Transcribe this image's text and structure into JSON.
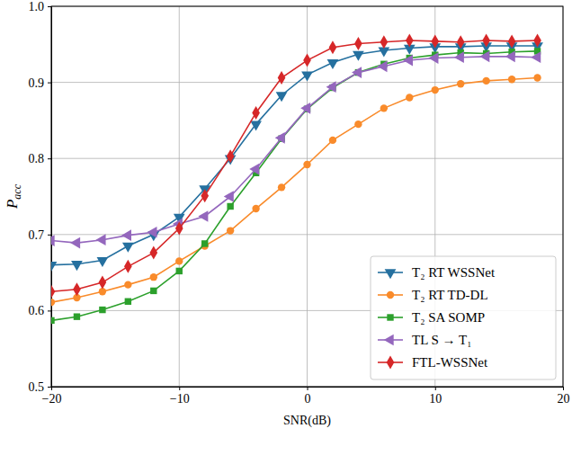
{
  "chart_data": {
    "type": "line",
    "x_label": "SNR(dB)",
    "y_label": "P",
    "y_label_subscript": "acc",
    "x": [
      -20,
      -18,
      -16,
      -14,
      -12,
      -10,
      -8,
      -6,
      -4,
      -2,
      0,
      2,
      4,
      6,
      8,
      10,
      12,
      14,
      16,
      18
    ],
    "xlim": [
      -20,
      20
    ],
    "xticks": [
      -20,
      -10,
      0,
      10,
      20
    ],
    "ylim": [
      0.5,
      1.0
    ],
    "yticks": [
      0.5,
      0.6,
      0.7,
      0.8,
      0.9,
      {
        "value": 1.0,
        "label": "1.0"
      }
    ],
    "grid": true,
    "legend": "lower right",
    "series": [
      {
        "name": "T₂ RT WSSNet",
        "color": "#25709f",
        "marker": "triangle_down",
        "values": [
          0.66,
          0.661,
          0.666,
          0.685,
          0.7,
          0.723,
          0.76,
          0.8,
          0.845,
          0.883,
          0.91,
          0.926,
          0.937,
          0.942,
          0.945,
          0.947,
          0.947,
          0.948,
          0.948,
          0.948
        ]
      },
      {
        "name": "T₂ RT TD-DL",
        "color": "#f98b2b",
        "marker": "circle",
        "values": [
          0.611,
          0.617,
          0.625,
          0.634,
          0.644,
          0.665,
          0.685,
          0.705,
          0.734,
          0.762,
          0.792,
          0.824,
          0.845,
          0.866,
          0.88,
          0.89,
          0.898,
          0.902,
          0.904,
          0.906
        ]
      },
      {
        "name": "T₂ SA SOMP",
        "color": "#2ca02c",
        "marker": "square",
        "values": [
          0.587,
          0.592,
          0.601,
          0.612,
          0.626,
          0.652,
          0.688,
          0.737,
          0.781,
          0.826,
          0.865,
          0.893,
          0.913,
          0.924,
          0.932,
          0.936,
          0.939,
          0.938,
          0.94,
          0.941
        ]
      },
      {
        "name": "TL S → T₁",
        "color": "#9467bd",
        "marker": "triangle_left",
        "values": [
          0.692,
          0.689,
          0.693,
          0.699,
          0.703,
          0.714,
          0.724,
          0.75,
          0.786,
          0.827,
          0.866,
          0.894,
          0.913,
          0.921,
          0.929,
          0.932,
          0.933,
          0.934,
          0.934,
          0.933
        ]
      },
      {
        "name": "FTL-WSSNet",
        "color": "#d62728",
        "marker": "diamond",
        "values": [
          0.625,
          0.628,
          0.637,
          0.658,
          0.676,
          0.708,
          0.751,
          0.803,
          0.86,
          0.906,
          0.929,
          0.946,
          0.951,
          0.953,
          0.955,
          0.954,
          0.953,
          0.955,
          0.954,
          0.955
        ]
      }
    ]
  }
}
